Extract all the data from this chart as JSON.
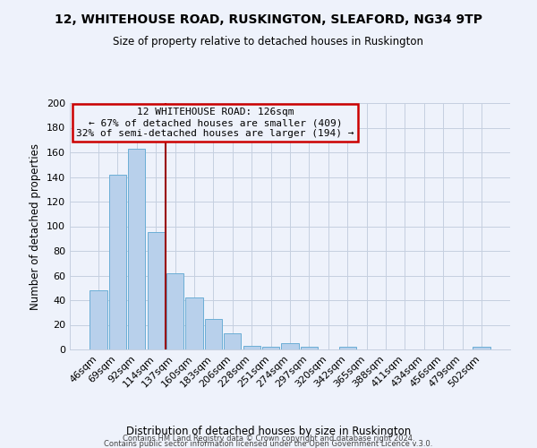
{
  "title": "12, WHITEHOUSE ROAD, RUSKINGTON, SLEAFORD, NG34 9TP",
  "subtitle": "Size of property relative to detached houses in Ruskington",
  "xlabel": "Distribution of detached houses by size in Ruskington",
  "ylabel": "Number of detached properties",
  "bar_labels": [
    "46sqm",
    "69sqm",
    "92sqm",
    "114sqm",
    "137sqm",
    "160sqm",
    "183sqm",
    "206sqm",
    "228sqm",
    "251sqm",
    "274sqm",
    "297sqm",
    "320sqm",
    "342sqm",
    "365sqm",
    "388sqm",
    "411sqm",
    "434sqm",
    "456sqm",
    "479sqm",
    "502sqm"
  ],
  "bar_values": [
    48,
    142,
    163,
    95,
    62,
    42,
    25,
    13,
    3,
    2,
    5,
    2,
    0,
    2,
    0,
    0,
    0,
    0,
    0,
    0,
    2
  ],
  "bar_color": "#b8d0eb",
  "bar_edge_color": "#6baed6",
  "ylim": [
    0,
    200
  ],
  "yticks": [
    0,
    20,
    40,
    60,
    80,
    100,
    120,
    140,
    160,
    180,
    200
  ],
  "vline_color": "#990000",
  "annotation_title": "12 WHITEHOUSE ROAD: 126sqm",
  "annotation_line1": "← 67% of detached houses are smaller (409)",
  "annotation_line2": "32% of semi-detached houses are larger (194) →",
  "annotation_box_color": "#cc0000",
  "footer1": "Contains HM Land Registry data © Crown copyright and database right 2024.",
  "footer2": "Contains public sector information licensed under the Open Government Licence v.3.0.",
  "background_color": "#eef2fb"
}
